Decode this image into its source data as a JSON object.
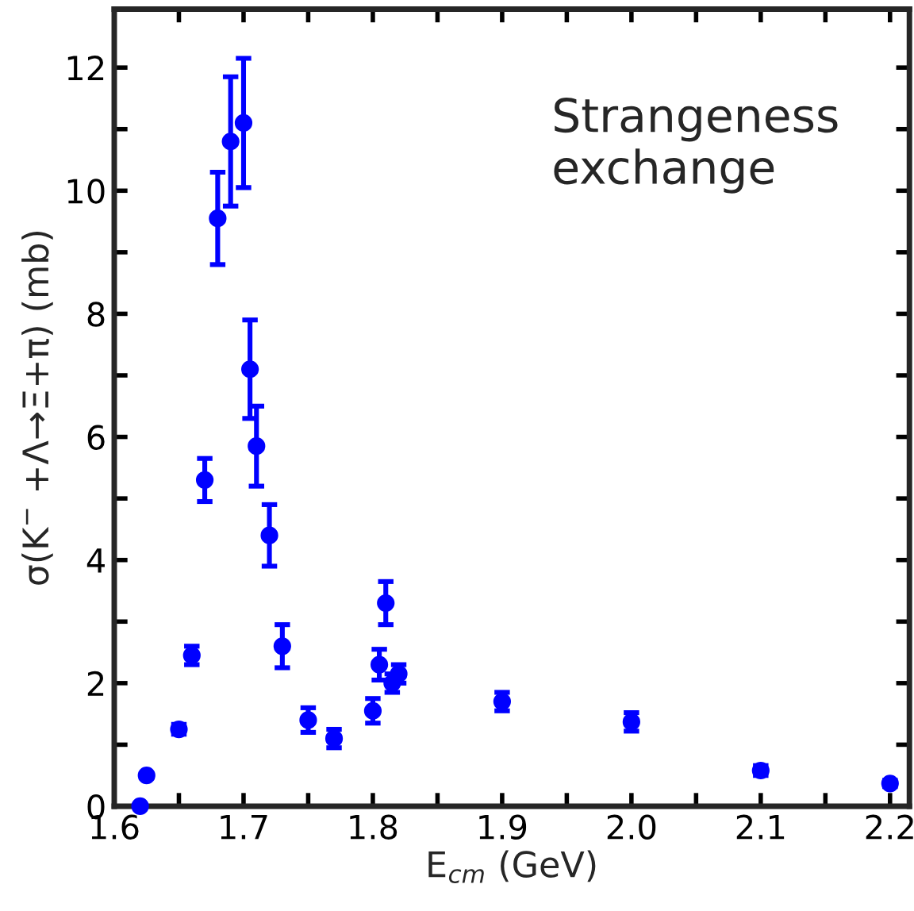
{
  "chart_data": {
    "type": "scatter",
    "xlabel": "E$_{cm}$ (GeV)",
    "ylabel": "σ(K$^{−}$ +Λ→Ξ+π) (mb)",
    "annotations": [
      "Strangeness\nexchange"
    ],
    "x": [
      1.62,
      1.625,
      1.65,
      1.66,
      1.67,
      1.68,
      1.69,
      1.7,
      1.705,
      1.71,
      1.72,
      1.73,
      1.75,
      1.77,
      1.8,
      1.805,
      1.81,
      1.815,
      1.82,
      1.9,
      2.0,
      2.1,
      2.2
    ],
    "series": [
      {
        "color": "#0000ff",
        "values": [
          0.0,
          0.5,
          1.25,
          2.45,
          5.3,
          9.55,
          10.8,
          11.1,
          7.1,
          5.85,
          4.4,
          2.6,
          1.4,
          1.1,
          1.55,
          2.3,
          3.3,
          2.0,
          2.15,
          1.7,
          1.37,
          0.58,
          0.37
        ],
        "errors": [
          null,
          null,
          0.08,
          0.15,
          0.35,
          0.75,
          1.05,
          1.05,
          0.8,
          0.65,
          0.5,
          0.35,
          0.2,
          0.15,
          0.2,
          0.25,
          0.35,
          0.15,
          0.15,
          0.15,
          0.15,
          0.08,
          0.05
        ]
      }
    ],
    "xlim": [
      1.6,
      2.215
    ],
    "ylim": [
      0,
      12.95
    ],
    "xticks": [
      {
        "value": 1.6,
        "label": "1.6"
      },
      {
        "value": 1.65,
        "label": null
      },
      {
        "value": 1.7,
        "label": "1.7"
      },
      {
        "value": 1.75,
        "label": null
      },
      {
        "value": 1.8,
        "label": "1.8"
      },
      {
        "value": 1.85,
        "label": null
      },
      {
        "value": 1.9,
        "label": "1.9"
      },
      {
        "value": 1.95,
        "label": null
      },
      {
        "value": 2.0,
        "label": "2.0"
      },
      {
        "value": 2.05,
        "label": null
      },
      {
        "value": 2.1,
        "label": "2.1"
      },
      {
        "value": 2.15,
        "label": null
      },
      {
        "value": 2.2,
        "label": "2.2"
      }
    ],
    "yticks": [
      0,
      {
        "value": 1,
        "label": null
      },
      2,
      {
        "value": 3,
        "label": null
      },
      4,
      {
        "value": 5,
        "label": null
      },
      6,
      {
        "value": 7,
        "label": null
      },
      8,
      {
        "value": 9,
        "label": null
      },
      10,
      {
        "value": 11,
        "label": null
      },
      12
    ],
    "marker": "circle",
    "grid": false,
    "legend": false
  }
}
